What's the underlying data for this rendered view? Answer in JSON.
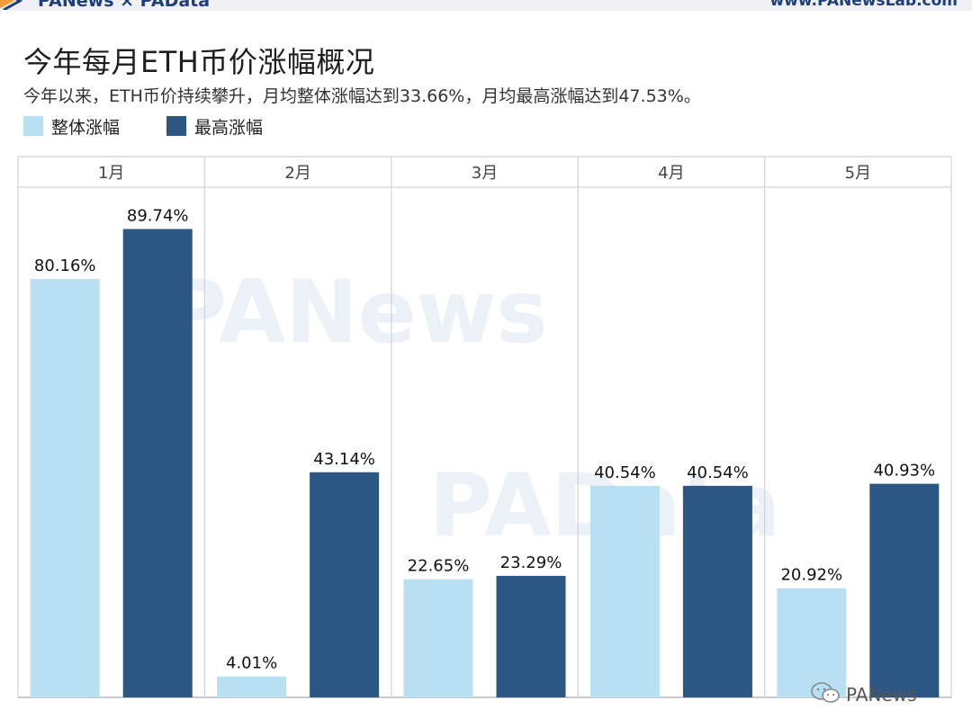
{
  "header": {
    "brand": "PANews × PAData",
    "site_url": "www.PANewsLab.com"
  },
  "title": "今年每月ETH币价涨幅概况",
  "subtitle": "今年以来，ETH币价持续攀升，月均整体涨幅达到33.66%，月均最高涨幅达到47.53%。",
  "watermarks": {
    "large_1": "PANews",
    "large_2": "PAData",
    "corner": "PANews"
  },
  "colors": {
    "series_light": "#b8dff2",
    "series_dark": "#2c5684",
    "grid": "#cfd3d8",
    "accent_orange": "#f29b3a"
  },
  "chart_data": {
    "type": "bar",
    "categories": [
      "1月",
      "2月",
      "3月",
      "4月",
      "5月"
    ],
    "series": [
      {
        "name": "整体涨幅",
        "values": [
          80.16,
          4.01,
          22.65,
          40.54,
          20.92
        ],
        "labels": [
          "80.16%",
          "4.01%",
          "22.65%",
          "40.54%",
          "20.92%"
        ]
      },
      {
        "name": "最高涨幅",
        "values": [
          89.74,
          43.14,
          23.29,
          40.54,
          40.93
        ],
        "labels": [
          "89.74%",
          "43.14%",
          "23.29%",
          "40.54%",
          "40.93%"
        ]
      }
    ],
    "ylim": [
      0,
      100
    ],
    "grid": false,
    "legend_position": "top-left",
    "layout": "faceted by month"
  }
}
